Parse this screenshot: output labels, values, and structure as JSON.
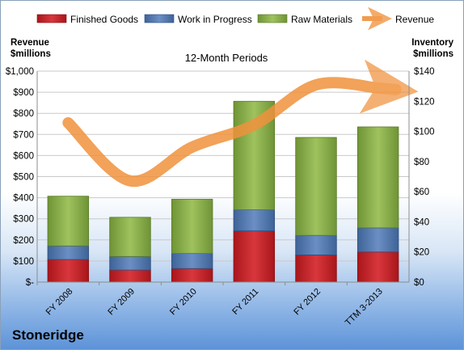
{
  "company_name": "Stoneridge",
  "chart_data": {
    "type": "bar",
    "subtype": "stacked-bar-with-line",
    "title": "12-Month Periods",
    "left_axis_title": [
      "Revenue",
      "$millions"
    ],
    "right_axis_title": [
      "Inventory",
      "$millions"
    ],
    "categories": [
      "FY 2008",
      "FY 2009",
      "FY 2010",
      "FY 2011",
      "FY 2012",
      "TTM 3-2013"
    ],
    "left_axis": {
      "min": 0,
      "max": 1000,
      "step": 100,
      "tick_labels": [
        "$-",
        "$100",
        "$200",
        "$300",
        "$400",
        "$500",
        "$600",
        "$700",
        "$800",
        "$900",
        "$1,000"
      ]
    },
    "right_axis": {
      "min": 0,
      "max": 140,
      "step": 20,
      "tick_labels": [
        "$0",
        "$20",
        "$40",
        "$60",
        "$80",
        "$100",
        "$120",
        "$140"
      ]
    },
    "grid": true,
    "legend_position": "top",
    "series": [
      {
        "name": "Finished Goods",
        "axis": "right",
        "kind": "bar",
        "color": "#c0282d",
        "values": [
          15,
          8,
          9,
          34,
          18,
          20
        ]
      },
      {
        "name": "Work in Progress",
        "axis": "right",
        "kind": "bar",
        "color": "#4f77b4",
        "values": [
          9,
          9,
          10,
          14,
          13,
          16
        ]
      },
      {
        "name": "Raw Materials",
        "axis": "right",
        "kind": "bar",
        "color": "#8db04c",
        "values": [
          33,
          26,
          36,
          72,
          65,
          67
        ]
      },
      {
        "name": "Revenue",
        "axis": "left",
        "kind": "line",
        "color": "#f0923d",
        "values": [
          755,
          480,
          640,
          745,
          935,
          920
        ]
      }
    ]
  }
}
